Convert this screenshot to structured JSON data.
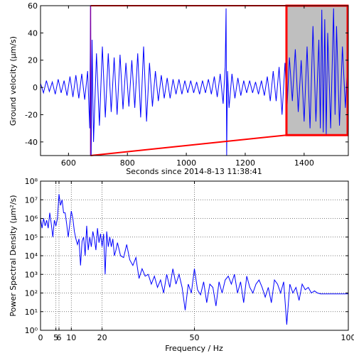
{
  "chart_data": [
    {
      "type": "line",
      "xlabel": "Seconds since 2014-8-13 11:38:41",
      "ylabel": "Ground velocity (μm/s)",
      "xlim": [
        505,
        1550
      ],
      "ylim": [
        -50,
        60
      ],
      "xticks": [
        600,
        800,
        1000,
        1200,
        1400
      ],
      "yticks": [
        -40,
        -20,
        0,
        20,
        40,
        60
      ],
      "grid": false,
      "log_y": false,
      "x": [
        505,
        515,
        525,
        535,
        545,
        555,
        565,
        575,
        585,
        595,
        605,
        615,
        625,
        635,
        645,
        655,
        665,
        672,
        675,
        677,
        680,
        685,
        695,
        705,
        715,
        725,
        735,
        745,
        755,
        765,
        775,
        785,
        795,
        805,
        815,
        825,
        835,
        845,
        855,
        865,
        875,
        885,
        895,
        905,
        915,
        925,
        935,
        945,
        955,
        965,
        975,
        985,
        995,
        1005,
        1015,
        1025,
        1035,
        1045,
        1055,
        1065,
        1075,
        1085,
        1095,
        1105,
        1115,
        1125,
        1132,
        1135,
        1137,
        1140,
        1145,
        1155,
        1165,
        1175,
        1185,
        1195,
        1205,
        1215,
        1225,
        1235,
        1245,
        1255,
        1265,
        1275,
        1285,
        1295,
        1305,
        1315,
        1325,
        1335,
        1342,
        1350,
        1360,
        1370,
        1380,
        1390,
        1400,
        1410,
        1420,
        1430,
        1440,
        1450,
        1455,
        1460,
        1465,
        1470,
        1475,
        1480,
        1490,
        1500,
        1505,
        1510,
        1520,
        1530,
        1540,
        1548
      ],
      "series": [
        {
          "color": "#0000ff",
          "values": [
            3,
            -4,
            5,
            -3,
            4,
            -5,
            6,
            -4,
            5,
            -6,
            8,
            -7,
            9,
            -8,
            10,
            -9,
            12,
            -30,
            60,
            -50,
            35,
            -40,
            25,
            -28,
            30,
            -22,
            25,
            -18,
            22,
            -20,
            24,
            -16,
            18,
            -14,
            20,
            -15,
            25,
            -22,
            30,
            -25,
            18,
            -14,
            12,
            -10,
            9,
            -8,
            7,
            -8,
            6,
            -5,
            6,
            -5,
            5,
            -4,
            5,
            -4,
            4,
            -5,
            5,
            -4,
            6,
            -5,
            8,
            -7,
            10,
            -12,
            15,
            58,
            -50,
            12,
            -15,
            10,
            -8,
            7,
            -6,
            5,
            -4,
            5,
            -4,
            4,
            -5,
            5,
            -6,
            8,
            -10,
            12,
            -10,
            15,
            -20,
            18,
            -15,
            22,
            -10,
            28,
            -18,
            20,
            -25,
            30,
            -30,
            45,
            -25,
            35,
            -30,
            57,
            -33,
            50,
            -35,
            40,
            -30,
            58,
            -20,
            45,
            -28,
            30,
            -15,
            20
          ]
        }
      ],
      "marker_x": 675,
      "inset": {
        "x": [
          1340,
          1550
        ],
        "y": [
          -35,
          60
        ]
      }
    },
    {
      "type": "line",
      "xlabel": "Frequency / Hz",
      "ylabel": "Power Spectral Density (μm²/s)",
      "xlim": [
        0,
        100
      ],
      "ylim": [
        1,
        100000000
      ],
      "xticks": [
        0,
        5,
        6,
        10,
        20,
        50,
        100
      ],
      "yticks": [
        {
          "value": 1,
          "label": "10⁰"
        },
        {
          "value": 10,
          "label": "10¹"
        },
        {
          "value": 100,
          "label": "10²"
        },
        {
          "value": 1000,
          "label": "10³"
        },
        {
          "value": 10000,
          "label": "10⁴"
        },
        {
          "value": 100000,
          "label": "10⁵"
        },
        {
          "value": 1000000,
          "label": "10⁶"
        },
        {
          "value": 10000000,
          "label": "10⁷"
        },
        {
          "value": 100000000,
          "label": "10⁸"
        }
      ],
      "grid": true,
      "log_y": true,
      "x": [
        0,
        0.5,
        1,
        1.5,
        2,
        2.5,
        3,
        3.5,
        4,
        4.5,
        5,
        5.5,
        6,
        6.5,
        7,
        7.5,
        8,
        8.5,
        9,
        9.5,
        10,
        10.5,
        11,
        11.5,
        12,
        12.5,
        13,
        13.5,
        14,
        14.5,
        15,
        15.5,
        16,
        16.5,
        17,
        17.5,
        18,
        18.5,
        19,
        19.5,
        20,
        20.5,
        21,
        21.5,
        22,
        22.5,
        23,
        23.5,
        24,
        24.5,
        25,
        26,
        27,
        28,
        29,
        30,
        31,
        32,
        33,
        34,
        35,
        36,
        37,
        38,
        39,
        40,
        41,
        42,
        43,
        44,
        45,
        46,
        47,
        48,
        49,
        50,
        51,
        52,
        53,
        54,
        55,
        56,
        57,
        58,
        59,
        60,
        61,
        62,
        63,
        64,
        65,
        66,
        67,
        68,
        69,
        70,
        71,
        72,
        73,
        74,
        75,
        76,
        77,
        78,
        79,
        80,
        81,
        82,
        83,
        84,
        85,
        86,
        87,
        88,
        89,
        90,
        91,
        92,
        95,
        100
      ],
      "series": [
        {
          "color": "#0000ff",
          "values": [
            1000000,
            300000,
            1000000,
            400000,
            800000,
            300000,
            2000000,
            500000,
            100000,
            800000,
            400000,
            1000000,
            20000000,
            5000000,
            10000000,
            2000000,
            2000000,
            500000,
            100000,
            500000,
            2500000,
            1000000,
            200000,
            80000,
            40000,
            80000,
            3000,
            60000,
            100000,
            10000,
            400000,
            20000,
            100000,
            30000,
            200000,
            80000,
            20000,
            300000,
            50000,
            150000,
            30000,
            150000,
            1000,
            200000,
            30000,
            100000,
            30000,
            80000,
            10000,
            20000,
            50000,
            10000,
            8000,
            40000,
            6000,
            3000,
            8000,
            600,
            2000,
            800,
            1000,
            300,
            800,
            200,
            500,
            100,
            1000,
            200,
            2000,
            300,
            1000,
            200,
            12,
            300,
            100,
            2000,
            150,
            80,
            400,
            30,
            300,
            200,
            20,
            400,
            100,
            500,
            800,
            300,
            1000,
            100,
            400,
            30,
            800,
            200,
            100,
            300,
            500,
            200,
            60,
            200,
            30,
            500,
            300,
            100,
            400,
            2,
            300,
            100,
            200,
            40,
            300,
            150,
            200,
            100,
            130,
            100,
            90,
            90,
            90,
            90
          ]
        }
      ]
    }
  ]
}
